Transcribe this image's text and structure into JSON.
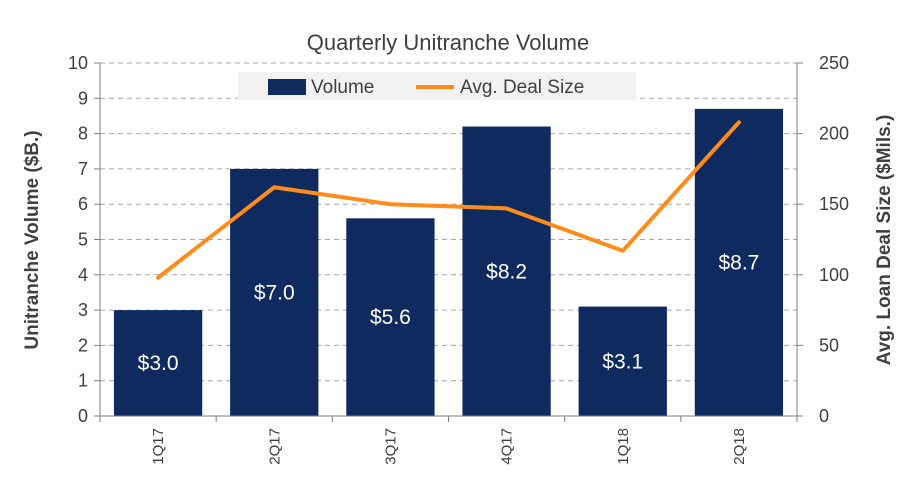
{
  "chart_data": {
    "type": "bar",
    "title": "Quarterly Unitranche Volume",
    "categories": [
      "1Q17",
      "2Q17",
      "3Q17",
      "4Q17",
      "1Q18",
      "2Q18"
    ],
    "series": [
      {
        "name": "Volume",
        "type": "bar",
        "axis": "left",
        "values": [
          3.0,
          7.0,
          5.6,
          8.2,
          3.1,
          8.7
        ],
        "labels": [
          "$3.0",
          "$7.0",
          "$5.6",
          "$8.2",
          "$3.1",
          "$8.7"
        ],
        "color": "#0e2a5e"
      },
      {
        "name": "Avg. Deal Size",
        "type": "line",
        "axis": "right",
        "values": [
          98,
          162,
          150,
          147,
          117,
          208
        ],
        "color": "#ff8c1a"
      }
    ],
    "ylabel": "Unitranche Volume ($B.)",
    "y2label": "Avg. Loan Deal Size ($Mils.)",
    "ylim": [
      0,
      10
    ],
    "y2lim": [
      0,
      250
    ],
    "yticks": [
      "0",
      "1",
      "2",
      "3",
      "4",
      "5",
      "6",
      "7",
      "8",
      "9",
      "10"
    ],
    "y2ticks": [
      "0",
      "50",
      "100",
      "150",
      "200",
      "250"
    ],
    "grid": true,
    "legend": "top-center"
  }
}
